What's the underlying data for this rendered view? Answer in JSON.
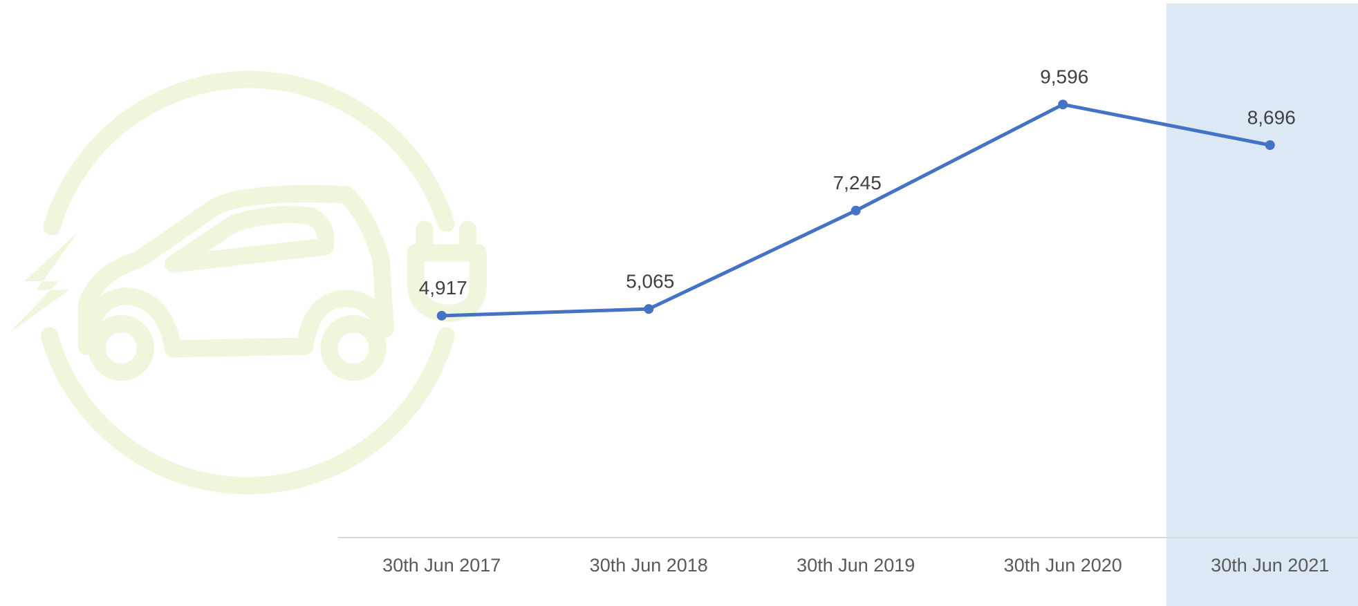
{
  "chart_data": {
    "type": "line",
    "categories": [
      "30th Jun 2017",
      "30th Jun 2018",
      "30th Jun 2019",
      "30th Jun 2020",
      "30th Jun 2021"
    ],
    "series": [
      {
        "color": "#4472c4",
        "values": [
          4917,
          5065,
          7245,
          9596,
          8696
        ],
        "value_labels": [
          "4,917",
          "5,065",
          "7,245",
          "9,596",
          "8,696"
        ]
      }
    ],
    "ylim": [
      0,
      11000
    ]
  }
}
